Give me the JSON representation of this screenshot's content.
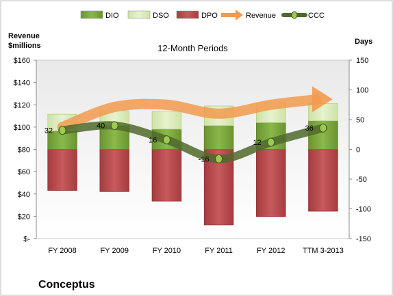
{
  "chart_data": {
    "type": "bar",
    "title": "12-Month Periods",
    "company": "Conceptus",
    "left_axis": {
      "label_line1": "Revenue",
      "label_line2": "$millions",
      "ylim": [
        0,
        160
      ],
      "ticks": [
        0,
        20,
        40,
        60,
        80,
        100,
        120,
        140,
        160
      ],
      "tick_labels": [
        "$-",
        "$20",
        "$40",
        "$60",
        "$80",
        "$100",
        "$120",
        "$140",
        "$160"
      ]
    },
    "right_axis": {
      "label": "Days",
      "ylim": [
        -150,
        150
      ],
      "ticks": [
        -150,
        -100,
        -50,
        0,
        50,
        100,
        150
      ],
      "tick_labels": [
        "-150",
        "-100",
        "-50",
        "0",
        "50",
        "100",
        "150"
      ]
    },
    "categories": [
      "FY 2008",
      "FY 2009",
      "FY 2010",
      "FY 2011",
      "FY 2012",
      "TTM 3-2013"
    ],
    "legend": {
      "position": "top",
      "entries": [
        {
          "name": "DIO",
          "kind": "bar",
          "color": "#77a33a"
        },
        {
          "name": "DSO",
          "kind": "bar",
          "color": "#d7e9b3"
        },
        {
          "name": "DPO",
          "kind": "bar",
          "color": "#b6474a"
        },
        {
          "name": "Revenue",
          "kind": "arrow",
          "color": "#f39a4f"
        },
        {
          "name": "CCC",
          "kind": "line",
          "color": "#4f6a2c"
        }
      ]
    },
    "series": [
      {
        "name": "DIO",
        "axis": "right",
        "values": [
          31,
          40,
          34,
          40,
          45,
          48
        ]
      },
      {
        "name": "DSO",
        "axis": "right",
        "values": [
          28,
          25,
          30,
          33,
          33,
          29
        ]
      },
      {
        "name": "DPO",
        "axis": "right",
        "values": [
          -69,
          -71,
          -87,
          -127,
          -113,
          -104
        ]
      },
      {
        "name": "Revenue",
        "axis": "left",
        "values": [
          100,
          118,
          120,
          112,
          120,
          125
        ]
      },
      {
        "name": "CCC",
        "axis": "right",
        "values": [
          32,
          40,
          16,
          -16,
          12,
          36
        ]
      }
    ],
    "ccc_labels": [
      "32",
      "40",
      "16",
      "-16",
      "12",
      "36"
    ],
    "grid": false
  }
}
